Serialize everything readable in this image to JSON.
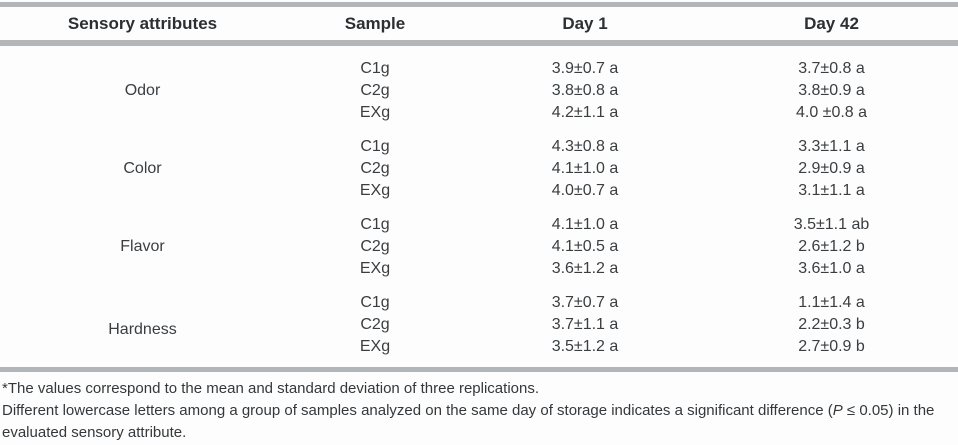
{
  "table": {
    "headers": [
      "Sensory attributes",
      "Sample",
      "Day 1",
      "Day 42"
    ],
    "groups": [
      {
        "attribute": "Odor",
        "rows": [
          {
            "sample": "C1g",
            "day1": "3.9±0.7 a",
            "day42": "3.7±0.8 a"
          },
          {
            "sample": "C2g",
            "day1": "3.8±0.8 a",
            "day42": "3.8±0.9 a"
          },
          {
            "sample": "EXg",
            "day1": "4.2±1.1 a",
            "day42": "4.0 ±0.8 a"
          }
        ]
      },
      {
        "attribute": "Color",
        "rows": [
          {
            "sample": "C1g",
            "day1": "4.3±0.8 a",
            "day42": "3.3±1.1 a"
          },
          {
            "sample": "C2g",
            "day1": "4.1±1.0 a",
            "day42": "2.9±0.9 a"
          },
          {
            "sample": "EXg",
            "day1": "4.0±0.7 a",
            "day42": "3.1±1.1 a"
          }
        ]
      },
      {
        "attribute": "Flavor",
        "rows": [
          {
            "sample": "C1g",
            "day1": "4.1±1.0 a",
            "day42": "3.5±1.1 ab"
          },
          {
            "sample": "C2g",
            "day1": "4.1±0.5 a",
            "day42": "2.6±1.2 b"
          },
          {
            "sample": "EXg",
            "day1": "3.6±1.2 a",
            "day42": "3.6±1.0 a"
          }
        ]
      },
      {
        "attribute": "Hardness",
        "rows": [
          {
            "sample": "C1g",
            "day1": "3.7±0.7 a",
            "day42": "1.1±1.4 a"
          },
          {
            "sample": "C2g",
            "day1": "3.7±1.1 a",
            "day42": "2.2±0.3 b"
          },
          {
            "sample": "EXg",
            "day1": "3.5±1.2 a",
            "day42": "2.7±0.9 b"
          }
        ]
      }
    ]
  },
  "footnotes": {
    "line1": "*The values correspond to the mean and standard deviation of three replications.",
    "line2_prefix": "Different lowercase letters among a group of samples analyzed on the same day of storage indicates a significant difference (",
    "line2_italic": "P",
    "line2_suffix": " ≤ 0.05) in the evaluated sensory attribute."
  },
  "colors": {
    "rule_gray": "#b3b6b8",
    "text": "#3a3e41"
  }
}
